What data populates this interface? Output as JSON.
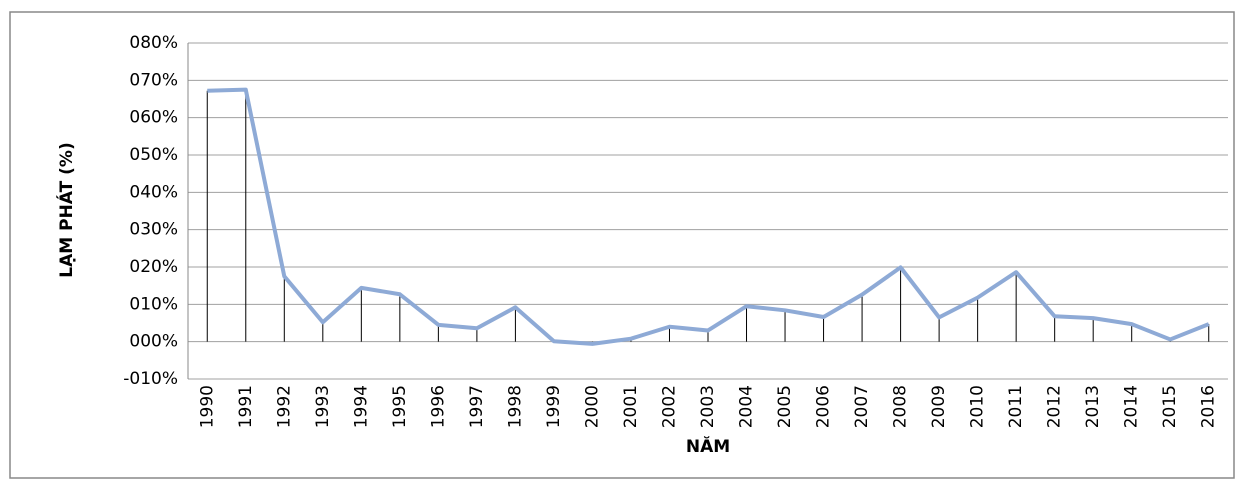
{
  "chart_data": {
    "type": "line",
    "x_label": "NĂM",
    "y_label": "LẠM PHÁT  (%)",
    "categories": [
      "1990",
      "1991",
      "1992",
      "1993",
      "1994",
      "1995",
      "1996",
      "1997",
      "1998",
      "1999",
      "2000",
      "2001",
      "2002",
      "2003",
      "2004",
      "2005",
      "2006",
      "2007",
      "2008",
      "2009",
      "2010",
      "2011",
      "2012",
      "2013",
      "2014",
      "2015",
      "2016"
    ],
    "series": [
      {
        "color": "#8eaad6",
        "values": [
          67.2,
          67.5,
          17.5,
          5.2,
          14.4,
          12.7,
          4.5,
          3.6,
          9.2,
          0.1,
          -0.6,
          0.8,
          4.0,
          3.0,
          9.5,
          8.4,
          6.6,
          12.6,
          19.9,
          6.5,
          11.8,
          18.6,
          6.8,
          6.3,
          4.7,
          0.6,
          4.7
        ]
      }
    ],
    "drop_lines": true,
    "ylim": [
      -10,
      80
    ],
    "yticks": [
      {
        "value": -10,
        "label": "-010%"
      },
      {
        "value": 0,
        "label": "000%"
      },
      {
        "value": 10,
        "label": "010%"
      },
      {
        "value": 20,
        "label": "020%"
      },
      {
        "value": 30,
        "label": "030%"
      },
      {
        "value": 40,
        "label": "040%"
      },
      {
        "value": 50,
        "label": "050%"
      },
      {
        "value": 60,
        "label": "060%"
      },
      {
        "value": 70,
        "label": "070%"
      },
      {
        "value": 80,
        "label": "080%"
      }
    ],
    "grid": true
  }
}
